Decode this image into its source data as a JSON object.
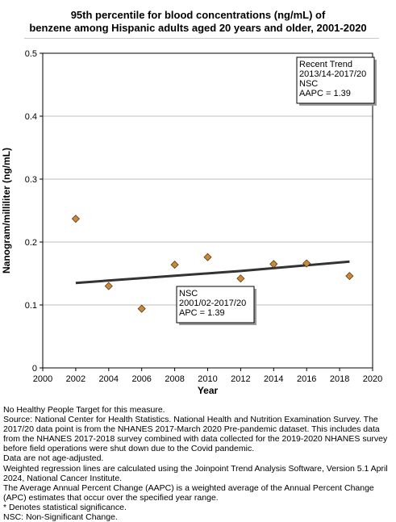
{
  "chart_data": {
    "type": "scatter",
    "title_lines": [
      "95th percentile for blood concentrations (ng/mL) of",
      "benzene among Hispanic adults aged 20 years and older, 2001-2020"
    ],
    "xlabel": "Year",
    "ylabel": "Nanogram/milliliter (ng/mL)",
    "xlim": [
      2000,
      2020
    ],
    "ylim": [
      0,
      0.5
    ],
    "x_ticks": [
      "2000",
      "2002",
      "2004",
      "2006",
      "2008",
      "2010",
      "2012",
      "2014",
      "2016",
      "2018",
      "2020"
    ],
    "y_ticks": [
      "0",
      "0.1",
      "0.2",
      "0.3",
      "0.4",
      "0.5"
    ],
    "grid": "horizontal",
    "marker_color": "#c8893c",
    "trend_color": "#333333",
    "points": [
      {
        "x": 2002,
        "y": 0.237
      },
      {
        "x": 2004,
        "y": 0.13
      },
      {
        "x": 2006,
        "y": 0.094
      },
      {
        "x": 2008,
        "y": 0.164
      },
      {
        "x": 2010,
        "y": 0.176
      },
      {
        "x": 2012,
        "y": 0.142
      },
      {
        "x": 2014,
        "y": 0.165
      },
      {
        "x": 2016,
        "y": 0.166
      },
      {
        "x": 2018.6,
        "y": 0.146
      }
    ],
    "trend_line": [
      {
        "x": 2002,
        "y": 0.135
      },
      {
        "x": 2012,
        "y": 0.154
      },
      {
        "x": 2018.6,
        "y": 0.169
      }
    ],
    "annotations": [
      {
        "name": "recent-trend-box",
        "lines": [
          "Recent Trend",
          "2013/14-2017/20",
          "NSC",
          "AAPC =  1.39"
        ]
      },
      {
        "name": "full-trend-box",
        "lines": [
          "NSC",
          "2001/02-2017/20",
          "APC =  1.39"
        ]
      }
    ]
  },
  "footnotes": [
    "No Healthy People Target for this measure.",
    "Source: National Center for Health Statistics. National Health and Nutrition Examination Survey. The 2017/20 data point is from the NHANES 2017-March 2020 Pre-pandemic dataset. This includes data from the NHANES 2017-2018 survey combined with data collected for the 2019-2020 NHANES survey before field operations were shut down due to the Covid pandemic.",
    "Data are not age-adjusted.",
    "Weighted regression lines are calculated using the Joinpoint Trend Analysis Software, Version 5.1 April 2024, National Cancer Institute.",
    "The Average Annual Percent Change (AAPC) is a weighted average of the Annual Percent Change (APC) estimates that occur over the specified year range.",
    "* Denotes statistical significance.",
    "NSC: Non-Significant Change."
  ]
}
